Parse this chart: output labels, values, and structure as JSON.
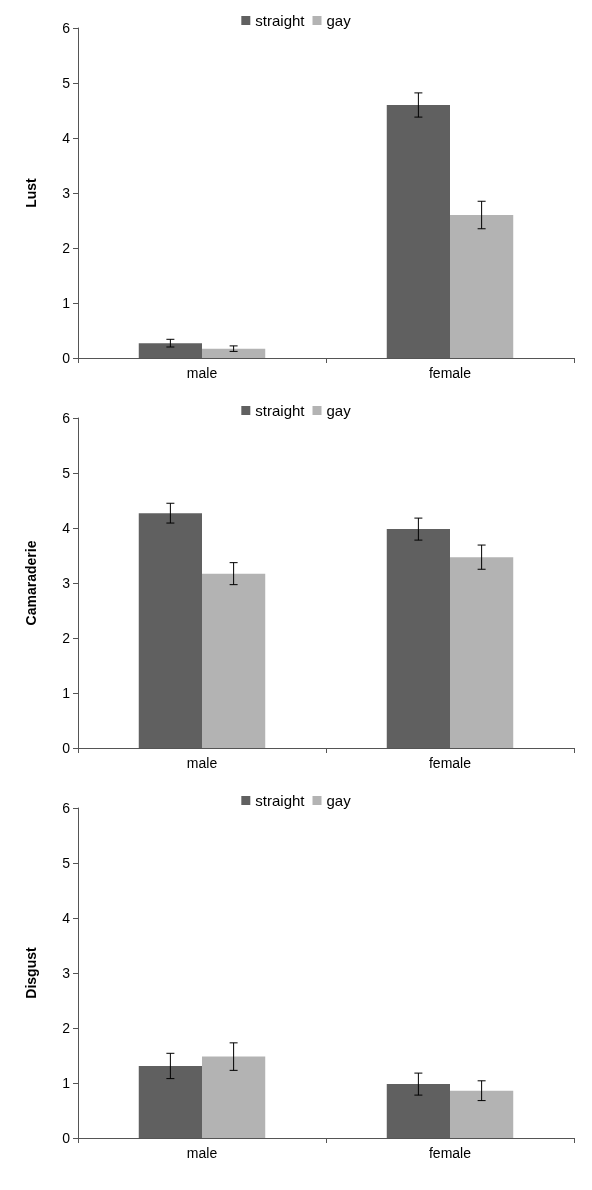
{
  "chart_data": [
    {
      "type": "bar",
      "ylabel": "Lust",
      "categories": [
        "male",
        "female"
      ],
      "series": [
        {
          "name": "straight",
          "color": "#606060",
          "values": [
            0.27,
            4.6
          ],
          "errors": [
            0.07,
            0.22
          ]
        },
        {
          "name": "gay",
          "color": "#b3b3b3",
          "values": [
            0.17,
            2.6
          ],
          "errors": [
            0.05,
            0.25
          ]
        }
      ],
      "ylim": [
        0,
        6
      ],
      "yticks": [
        0,
        1,
        2,
        3,
        4,
        5,
        6
      ],
      "grid": false,
      "legend": "top"
    },
    {
      "type": "bar",
      "ylabel": "Camaraderie",
      "categories": [
        "male",
        "female"
      ],
      "series": [
        {
          "name": "straight",
          "color": "#606060",
          "values": [
            4.27,
            3.98
          ],
          "errors": [
            0.18,
            0.2
          ]
        },
        {
          "name": "gay",
          "color": "#b3b3b3",
          "values": [
            3.17,
            3.47
          ],
          "errors": [
            0.2,
            0.22
          ]
        }
      ],
      "ylim": [
        0,
        6
      ],
      "yticks": [
        0,
        1,
        2,
        3,
        4,
        5,
        6
      ],
      "grid": false,
      "legend": "top"
    },
    {
      "type": "bar",
      "ylabel": "Disgust",
      "categories": [
        "male",
        "female"
      ],
      "series": [
        {
          "name": "straight",
          "color": "#606060",
          "values": [
            1.31,
            0.98
          ],
          "errors": [
            0.23,
            0.2
          ]
        },
        {
          "name": "gay",
          "color": "#b3b3b3",
          "values": [
            1.48,
            0.86
          ],
          "errors": [
            0.25,
            0.18
          ]
        }
      ],
      "ylim": [
        0,
        6
      ],
      "yticks": [
        0,
        1,
        2,
        3,
        4,
        5,
        6
      ],
      "grid": false,
      "legend": "top"
    }
  ]
}
